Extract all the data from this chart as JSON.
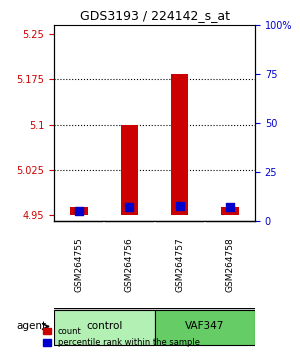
{
  "title": "GDS3193 / 224142_s_at",
  "samples": [
    "GSM264755",
    "GSM264756",
    "GSM264757",
    "GSM264758"
  ],
  "count_values": [
    4.964,
    5.1,
    5.183,
    4.964
  ],
  "percentile_values": [
    5.0,
    7.0,
    7.5,
    7.0
  ],
  "baseline": 4.95,
  "ylim_left": [
    4.94,
    5.265
  ],
  "yticks_left": [
    4.95,
    5.025,
    5.1,
    5.175,
    5.25
  ],
  "ytick_labels_left": [
    "4.95",
    "5.025",
    "5.1",
    "5.175",
    "5.25"
  ],
  "ylim_right": [
    0,
    100
  ],
  "yticks_right": [
    0,
    25,
    50,
    75,
    100
  ],
  "ytick_labels_right": [
    "0",
    "25",
    "50",
    "75",
    "100%"
  ],
  "groups": [
    {
      "label": "control",
      "samples": [
        0,
        1
      ],
      "color": "#b3f0b3"
    },
    {
      "label": "VAF347",
      "samples": [
        2,
        3
      ],
      "color": "#66cc66"
    }
  ],
  "group_label": "agent",
  "bar_color_red": "#cc0000",
  "bar_color_blue": "#0000cc",
  "bar_width": 0.35,
  "blue_square_size": 40,
  "background_color": "#ffffff",
  "plot_bg": "#ffffff",
  "grid_color": "#000000",
  "left_tick_color": "#cc0000",
  "right_tick_color": "#0000cc",
  "x_positions": [
    1,
    2,
    3,
    4
  ]
}
